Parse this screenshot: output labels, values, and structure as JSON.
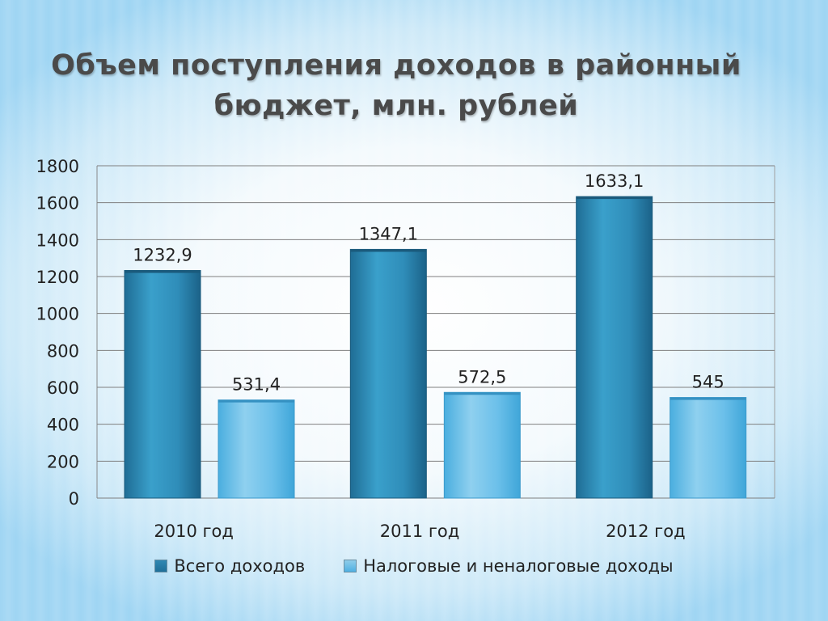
{
  "title_line1": "Объем поступления доходов в районный",
  "title_line2": "бюджет, млн. рублей",
  "chart_data": {
    "type": "bar",
    "categories": [
      "2010 год",
      "2011 год",
      "2012 год"
    ],
    "series": [
      {
        "name": "Всего доходов",
        "values": [
          1232.9,
          1347.1,
          1633.1
        ],
        "labels": [
          "1232,9",
          "1347,1",
          "1633,1"
        ],
        "color": "#2a85b0"
      },
      {
        "name": "Налоговые и неналоговые доходы",
        "values": [
          531.4,
          572.5,
          545
        ],
        "labels": [
          "531,4",
          "572,5",
          "545"
        ],
        "color": "#5ab8e6"
      }
    ],
    "yticks": [
      0,
      200,
      400,
      600,
      800,
      1000,
      1200,
      1400,
      1600,
      1800
    ],
    "ylim": [
      0,
      1800
    ],
    "grid": true,
    "legend": "bottom"
  }
}
